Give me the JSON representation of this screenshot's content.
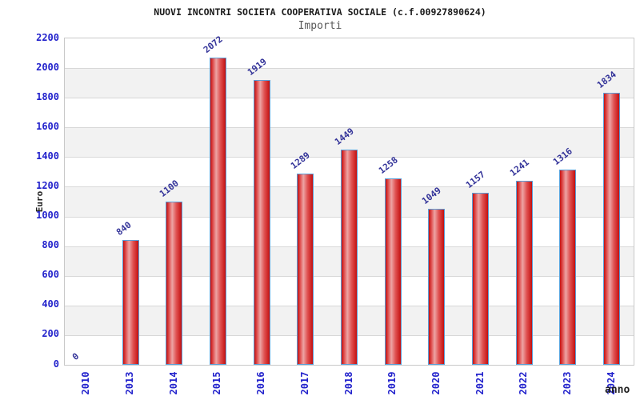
{
  "chart_data": {
    "type": "bar",
    "title": "NUOVI INCONTRI SOCIETA COOPERATIVA SOCIALE (c.f.00927890624)",
    "subtitle": "Importi",
    "xlabel": "anno",
    "ylabel": "Euro",
    "categories": [
      "2010",
      "2013",
      "2014",
      "2015",
      "2016",
      "2017",
      "2018",
      "2019",
      "2020",
      "2021",
      "2022",
      "2023",
      "2024"
    ],
    "values": [
      0,
      840,
      1100,
      2072,
      1919,
      1289,
      1449,
      1258,
      1049,
      1157,
      1241,
      1316,
      1834
    ],
    "ylim": [
      0,
      2200
    ],
    "ytick_step": 200,
    "grid": true,
    "legend": "none",
    "colors": {
      "bar_edge_dark": "#c41010",
      "bar_mid": "#e05252",
      "bar_highlight": "#eda4a4",
      "bar_border": "#5b9fd8",
      "tick_label": "#2222cc",
      "value_label": "#333399",
      "band_gray": "#f2f2f2",
      "grid_line": "#d8d8d8",
      "plot_border": "#c8c8c8",
      "subtitle_text": "#595959",
      "title_text": "#1a1a1a"
    }
  }
}
